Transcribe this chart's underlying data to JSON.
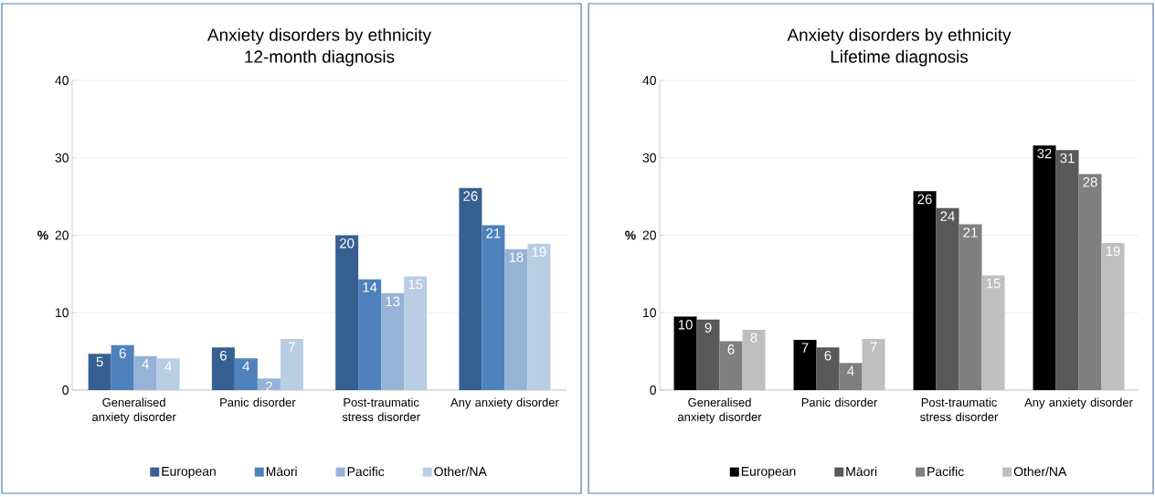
{
  "chart_data": [
    {
      "type": "bar",
      "title": "Anxiety disorders by ethnicity",
      "subtitle": "12-month diagnosis",
      "ylabel": "%",
      "categories": [
        "Generalised anxiety disorder",
        "Panic disorder",
        "Post-traumatic stress disorder",
        "Any anxiety disorder"
      ],
      "series": [
        {
          "name": "European",
          "color": "#376092",
          "values": [
            4.7,
            5.5,
            20.0,
            26.1
          ],
          "value_labels": [
            "5",
            "6",
            "20",
            "26"
          ]
        },
        {
          "name": "Māori",
          "color": "#4f81bd",
          "values": [
            5.8,
            4.1,
            14.3,
            21.3
          ],
          "value_labels": [
            "6",
            "4",
            "14",
            "21"
          ]
        },
        {
          "name": "Pacific",
          "color": "#95b3d7",
          "values": [
            4.4,
            1.5,
            12.5,
            18.2
          ],
          "value_labels": [
            "4",
            "2",
            "13",
            "18"
          ]
        },
        {
          "name": "Other/NA",
          "color": "#b9cde5",
          "values": [
            4.1,
            6.6,
            14.7,
            18.9
          ],
          "value_labels": [
            "4",
            "7",
            "15",
            "19"
          ]
        }
      ],
      "ylim": [
        0,
        40
      ],
      "yticks": [
        0,
        10,
        20,
        30,
        40
      ],
      "grid": "y",
      "legend": "bottom"
    },
    {
      "type": "bar",
      "title": "Anxiety disorders by ethnicity",
      "subtitle": "Lifetime diagnosis",
      "ylabel": "%",
      "categories": [
        "Generalised anxiety disorder",
        "Panic disorder",
        "Post-traumatic stress disorder",
        "Any anxiety disorder"
      ],
      "series": [
        {
          "name": "European",
          "color": "#000000",
          "values": [
            9.5,
            6.5,
            25.7,
            31.6
          ],
          "value_labels": [
            "10",
            "7",
            "26",
            "32"
          ]
        },
        {
          "name": "Māori",
          "color": "#595959",
          "values": [
            9.1,
            5.5,
            23.5,
            31.0
          ],
          "value_labels": [
            "9",
            "6",
            "24",
            "31"
          ]
        },
        {
          "name": "Pacific",
          "color": "#7f7f7f",
          "values": [
            6.3,
            3.5,
            21.4,
            27.9
          ],
          "value_labels": [
            "6",
            "4",
            "21",
            "28"
          ]
        },
        {
          "name": "Other/NA",
          "color": "#bfbfbf",
          "values": [
            7.8,
            6.6,
            14.8,
            19.0
          ],
          "value_labels": [
            "8",
            "7",
            "15",
            "19"
          ]
        }
      ],
      "ylim": [
        0,
        40
      ],
      "yticks": [
        0,
        10,
        20,
        30,
        40
      ],
      "grid": "y",
      "legend": "bottom"
    }
  ]
}
